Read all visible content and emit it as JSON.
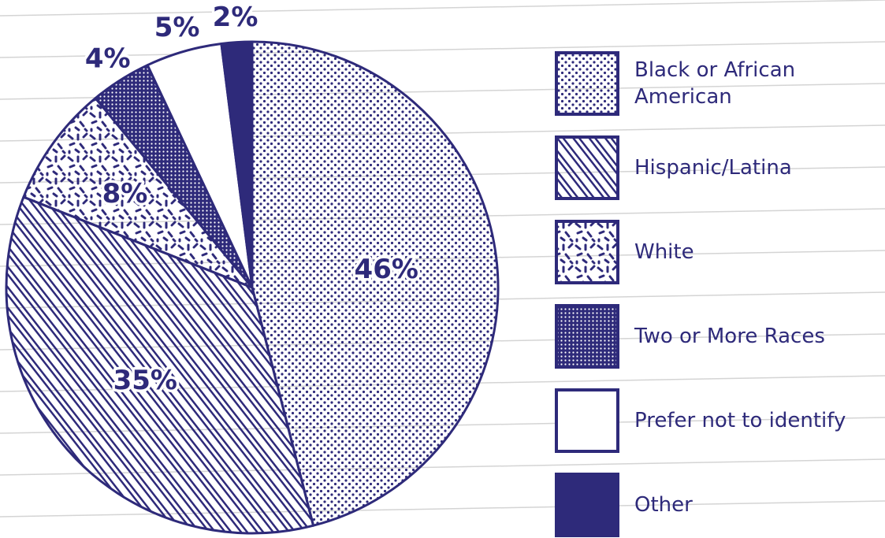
{
  "chart_data": {
    "type": "pie",
    "categories": [
      "Black or African American",
      "Hispanic/Latina",
      "White",
      "Two or More Races",
      "Prefer not to identify",
      "Other"
    ],
    "values": [
      46,
      35,
      8,
      4,
      5,
      2
    ],
    "value_labels": [
      "46%",
      "35%",
      "8%",
      "4%",
      "5%",
      "2%"
    ],
    "color": "#2e2a7a"
  }
}
